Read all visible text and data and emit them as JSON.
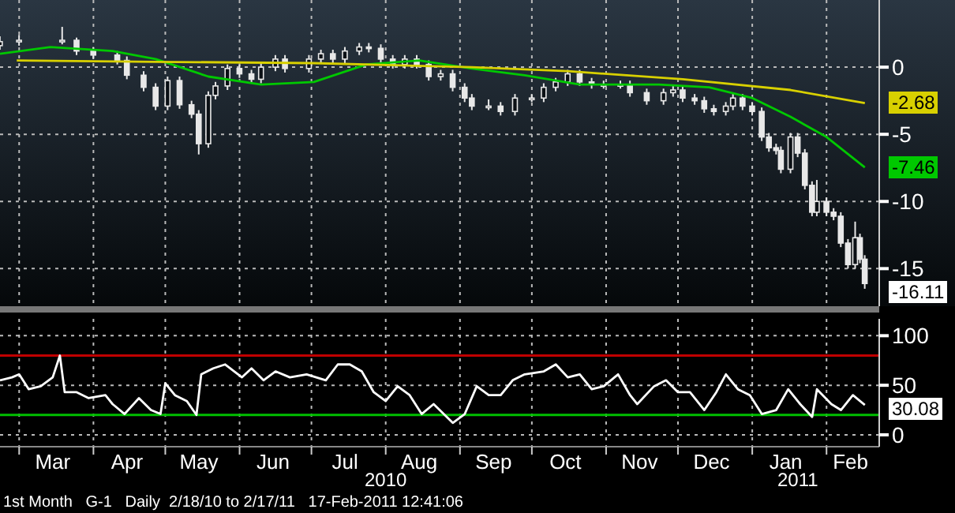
{
  "chart_data": [
    {
      "type": "candlestick",
      "xlim": [
        "2010-02-21",
        "2011-02-23"
      ],
      "ylim": [
        -17.8,
        5
      ],
      "yticks": [
        0,
        -5,
        -10,
        -15
      ],
      "tick_labels": "y",
      "grid": true,
      "xticks": [
        {
          "value": "2010-03-01",
          "label": null
        },
        {
          "value": "2010-04-01",
          "label": null
        },
        {
          "value": "2010-05-01",
          "label": null
        },
        {
          "value": "2010-06-01",
          "label": null
        },
        {
          "value": "2010-07-01",
          "label": null
        },
        {
          "value": "2010-08-01",
          "label": null
        },
        {
          "value": "2010-09-01",
          "label": null
        },
        {
          "value": "2010-10-01",
          "label": null
        },
        {
          "value": "2010-11-01",
          "label": null
        },
        {
          "value": "2010-12-01",
          "label": null
        },
        {
          "value": "2011-01-01",
          "label": null
        },
        {
          "value": "2011-02-01",
          "label": null
        }
      ],
      "series": [
        {
          "type": "candlestick",
          "color": "#e8e8e8",
          "x": [
            "2010-02-21",
            "2010-03-01",
            "2010-03-19",
            "2010-03-25",
            "2010-04-01",
            "2010-04-11",
            "2010-04-15",
            "2010-04-22",
            "2010-04-27",
            "2010-05-02",
            "2010-05-07",
            "2010-05-12",
            "2010-05-15",
            "2010-05-19",
            "2010-05-22",
            "2010-05-27",
            "2010-06-01",
            "2010-06-06",
            "2010-06-10",
            "2010-06-16",
            "2010-06-20",
            "2010-06-30",
            "2010-07-05",
            "2010-07-10",
            "2010-07-15",
            "2010-07-21",
            "2010-07-25",
            "2010-07-30",
            "2010-08-04",
            "2010-08-09",
            "2010-08-14",
            "2010-08-19",
            "2010-08-24",
            "2010-08-29",
            "2010-09-03",
            "2010-09-06",
            "2010-09-13",
            "2010-09-18",
            "2010-09-24",
            "2010-10-01",
            "2010-10-06",
            "2010-10-11",
            "2010-10-16",
            "2010-10-21",
            "2010-10-26",
            "2010-10-31",
            "2010-11-07",
            "2010-11-11",
            "2010-11-18",
            "2010-11-25",
            "2010-11-29",
            "2010-12-03",
            "2010-12-08",
            "2010-12-12",
            "2010-12-16",
            "2010-12-21",
            "2010-12-24",
            "2010-12-28",
            "2011-01-01",
            "2011-01-05",
            "2011-01-08",
            "2011-01-11",
            "2011-01-13",
            "2011-01-17",
            "2011-01-20",
            "2011-01-23",
            "2011-01-26",
            "2011-01-28",
            "2011-02-01",
            "2011-02-04",
            "2011-02-07",
            "2011-02-10",
            "2011-02-13",
            "2011-02-15",
            "2011-02-17"
          ],
          "ohlc": [
            [
              1.6,
              2.3,
              1.3,
              1.9
            ],
            [
              1.9,
              2.4,
              1.6,
              2.0
            ],
            [
              2.0,
              3.0,
              1.7,
              2.0
            ],
            [
              2.0,
              2.2,
              0.9,
              1.2
            ],
            [
              1.2,
              1.5,
              0.6,
              0.9
            ],
            [
              0.9,
              1.2,
              0.2,
              0.5
            ],
            [
              0.5,
              0.8,
              -0.9,
              -0.6
            ],
            [
              -0.6,
              -0.3,
              -1.8,
              -1.5
            ],
            [
              -1.5,
              -1.2,
              -3.2,
              -2.9
            ],
            [
              -2.9,
              -0.7,
              -3.2,
              -1.0
            ],
            [
              -1.0,
              -0.7,
              -3.1,
              -2.8
            ],
            [
              -2.8,
              -2.5,
              -3.8,
              -3.5
            ],
            [
              -3.5,
              -3.2,
              -6.5,
              -5.7
            ],
            [
              -5.7,
              -1.8,
              -6.0,
              -2.1
            ],
            [
              -2.1,
              -1.1,
              -2.4,
              -1.4
            ],
            [
              -1.4,
              0.2,
              -1.7,
              -0.1
            ],
            [
              -0.1,
              0.2,
              -0.8,
              -0.5
            ],
            [
              -0.5,
              -0.2,
              -1.2,
              -0.9
            ],
            [
              -0.9,
              0.3,
              -1.2,
              0.0
            ],
            [
              0.0,
              0.9,
              -0.3,
              0.6
            ],
            [
              0.6,
              0.9,
              -0.4,
              -0.1
            ],
            [
              -0.1,
              0.9,
              -0.4,
              0.6
            ],
            [
              0.6,
              1.3,
              0.3,
              1.0
            ],
            [
              1.0,
              1.3,
              0.3,
              0.6
            ],
            [
              0.6,
              1.5,
              0.3,
              1.2
            ],
            [
              1.2,
              1.8,
              0.9,
              1.5
            ],
            [
              1.5,
              1.8,
              1.1,
              1.4
            ],
            [
              1.4,
              1.7,
              0.3,
              0.6
            ],
            [
              0.6,
              0.9,
              -0.1,
              0.2
            ],
            [
              0.2,
              0.9,
              -0.1,
              0.6
            ],
            [
              0.6,
              0.9,
              -0.1,
              0.2
            ],
            [
              0.2,
              0.5,
              -1.0,
              -0.7
            ],
            [
              -0.7,
              -0.2,
              -1.0,
              -0.5
            ],
            [
              -0.5,
              -0.2,
              -1.8,
              -1.5
            ],
            [
              -1.5,
              -1.2,
              -2.6,
              -2.3
            ],
            [
              -2.3,
              -2.0,
              -3.2,
              -2.9
            ],
            [
              -2.9,
              -2.4,
              -3.2,
              -2.9
            ],
            [
              -2.9,
              -2.6,
              -3.6,
              -3.3
            ],
            [
              -3.3,
              -2.0,
              -3.6,
              -2.3
            ],
            [
              -2.3,
              -2.0,
              -2.6,
              -2.3
            ],
            [
              -2.3,
              -1.2,
              -2.6,
              -1.5
            ],
            [
              -1.5,
              -0.8,
              -1.8,
              -1.1
            ],
            [
              -1.1,
              -0.2,
              -1.4,
              -0.5
            ],
            [
              -0.5,
              -0.2,
              -1.4,
              -1.1
            ],
            [
              -1.1,
              -0.8,
              -1.6,
              -1.3
            ],
            [
              -1.3,
              -1.0,
              -1.6,
              -1.3
            ],
            [
              -1.3,
              -1.0,
              -1.6,
              -1.3
            ],
            [
              -1.3,
              -1.0,
              -2.2,
              -1.9
            ],
            [
              -1.9,
              -1.6,
              -2.8,
              -2.5
            ],
            [
              -2.5,
              -1.6,
              -2.8,
              -1.9
            ],
            [
              -1.9,
              -1.4,
              -2.2,
              -1.7
            ],
            [
              -1.7,
              -1.4,
              -2.6,
              -2.3
            ],
            [
              -2.3,
              -2.0,
              -2.8,
              -2.5
            ],
            [
              -2.5,
              -2.2,
              -3.4,
              -3.1
            ],
            [
              -3.1,
              -2.8,
              -3.6,
              -3.3
            ],
            [
              -3.3,
              -2.6,
              -3.6,
              -2.9
            ],
            [
              -2.9,
              -2.0,
              -3.2,
              -2.3
            ],
            [
              -2.3,
              -2.0,
              -3.2,
              -2.9
            ],
            [
              -2.9,
              -2.6,
              -3.6,
              -3.3
            ],
            [
              -3.3,
              -3.0,
              -5.5,
              -5.2
            ],
            [
              -5.2,
              -4.9,
              -6.3,
              -6.0
            ],
            [
              -6.0,
              -5.7,
              -6.5,
              -6.2
            ],
            [
              -6.2,
              -5.9,
              -7.9,
              -7.6
            ],
            [
              -7.6,
              -4.9,
              -7.9,
              -5.2
            ],
            [
              -5.2,
              -4.9,
              -6.7,
              -6.4
            ],
            [
              -6.4,
              -6.1,
              -9.1,
              -8.8
            ],
            [
              -8.8,
              -8.5,
              -11.1,
              -10.8
            ],
            [
              -10.8,
              -8.4,
              -11.1,
              -10.0
            ],
            [
              -10.0,
              -9.7,
              -11.1,
              -10.8
            ],
            [
              -10.8,
              -10.5,
              -11.4,
              -11.1
            ],
            [
              -11.1,
              -10.8,
              -13.4,
              -13.1
            ],
            [
              -13.1,
              -12.8,
              -15.0,
              -14.7
            ],
            [
              -14.7,
              -11.5,
              -15.0,
              -12.7
            ],
            [
              -12.7,
              -12.4,
              -14.6,
              -14.3
            ],
            [
              -14.3,
              -14.0,
              -16.5,
              -16.11
            ]
          ]
        },
        {
          "type": "line",
          "color": "#00c800",
          "x": [
            "2010-02-21",
            "2010-03-14",
            "2010-04-09",
            "2010-04-27",
            "2010-05-19",
            "2010-06-10",
            "2010-07-02",
            "2010-07-24",
            "2010-08-15",
            "2010-09-06",
            "2010-09-28",
            "2010-10-21",
            "2010-11-23",
            "2010-12-14",
            "2011-01-01",
            "2011-01-17",
            "2011-02-01",
            "2011-02-17"
          ],
          "values": [
            1.0,
            1.5,
            1.2,
            0.6,
            -0.7,
            -1.3,
            -1.1,
            0.2,
            0.5,
            -0.1,
            -0.6,
            -1.3,
            -1.3,
            -1.5,
            -2.3,
            -3.7,
            -5.2,
            -7.46
          ]
        },
        {
          "type": "line",
          "color": "#d8d000",
          "x": [
            "2010-02-28",
            "2010-04-27",
            "2010-07-02",
            "2010-09-06",
            "2010-10-16",
            "2010-12-03",
            "2011-01-17",
            "2011-02-17"
          ],
          "values": [
            0.5,
            0.4,
            0.3,
            0.0,
            -0.3,
            -0.9,
            -1.7,
            -2.68
          ]
        }
      ],
      "annotations": [
        {
          "text": "-2.68",
          "x": "2011-02-17",
          "y": -2.68
        },
        {
          "text": "-7.46",
          "x": "2011-02-17",
          "y": -7.46
        },
        {
          "text": "-16.11",
          "x": "2011-02-17",
          "y": -16.11
        }
      ]
    },
    {
      "type": "line",
      "xlim": [
        "2010-02-21",
        "2011-02-23"
      ],
      "ylim": [
        -12,
        117
      ],
      "yticks": [
        0,
        50,
        100
      ],
      "grid": true,
      "xticks": [
        {
          "value": "2010-03-01",
          "label": null
        },
        {
          "value": "2010-03-15",
          "label": "Mar"
        },
        {
          "value": "2010-04-01",
          "label": null
        },
        {
          "value": "2010-04-15",
          "label": "Apr"
        },
        {
          "value": "2010-05-01",
          "label": null
        },
        {
          "value": "2010-05-15",
          "label": "May"
        },
        {
          "value": "2010-06-01",
          "label": null
        },
        {
          "value": "2010-06-15",
          "label": "Jun"
        },
        {
          "value": "2010-07-01",
          "label": null
        },
        {
          "value": "2010-07-15",
          "label": "Jul"
        },
        {
          "value": "2010-08-01",
          "label": null
        },
        {
          "value": "2010-08-15",
          "label": "Aug"
        },
        {
          "value": "2010-09-01",
          "label": null
        },
        {
          "value": "2010-09-15",
          "label": "Sep"
        },
        {
          "value": "2010-10-01",
          "label": null
        },
        {
          "value": "2010-10-15",
          "label": "Oct"
        },
        {
          "value": "2010-11-01",
          "label": null
        },
        {
          "value": "2010-11-15",
          "label": "Nov"
        },
        {
          "value": "2010-12-01",
          "label": null
        },
        {
          "value": "2010-12-15",
          "label": "Dec"
        },
        {
          "value": "2011-01-01",
          "label": null
        },
        {
          "value": "2011-01-15",
          "label": "Jan"
        },
        {
          "value": "2011-02-01",
          "label": null
        },
        {
          "value": "2011-02-11",
          "label": "Feb"
        }
      ],
      "series": [
        {
          "color": "#ffffff",
          "x": [
            "2010-02-21",
            "2010-02-26",
            "2010-03-01",
            "2010-03-05",
            "2010-03-10",
            "2010-03-15",
            "2010-03-18",
            "2010-03-20",
            "2010-03-25",
            "2010-03-30",
            "2010-04-06",
            "2010-04-09",
            "2010-04-14",
            "2010-04-20",
            "2010-04-25",
            "2010-04-29",
            "2010-05-01",
            "2010-05-05",
            "2010-05-10",
            "2010-05-14",
            "2010-05-16",
            "2010-05-21",
            "2010-05-26",
            "2010-06-02",
            "2010-06-06",
            "2010-06-11",
            "2010-06-16",
            "2010-06-22",
            "2010-06-29",
            "2010-07-07",
            "2010-07-12",
            "2010-07-17",
            "2010-07-22",
            "2010-07-27",
            "2010-08-01",
            "2010-08-06",
            "2010-08-11",
            "2010-08-16",
            "2010-08-21",
            "2010-08-29",
            "2010-09-03",
            "2010-09-08",
            "2010-09-13",
            "2010-09-18",
            "2010-09-23",
            "2010-09-28",
            "2010-10-06",
            "2010-10-11",
            "2010-10-16",
            "2010-10-21",
            "2010-10-26",
            "2010-10-31",
            "2010-11-06",
            "2010-11-11",
            "2010-11-14",
            "2010-11-21",
            "2010-11-26",
            "2010-12-01",
            "2010-12-06",
            "2010-12-12",
            "2010-12-17",
            "2010-12-21",
            "2010-12-26",
            "2010-12-31",
            "2011-01-05",
            "2011-01-11",
            "2011-01-16",
            "2011-01-21",
            "2011-01-26",
            "2011-01-28",
            "2011-02-03",
            "2011-02-07",
            "2011-02-12",
            "2011-02-17"
          ],
          "values": [
            55,
            58,
            61,
            46,
            49,
            58,
            80,
            43,
            43,
            37,
            40,
            31,
            21,
            37,
            25,
            21,
            52,
            40,
            34,
            20,
            61,
            67,
            71,
            58,
            67,
            55,
            64,
            58,
            61,
            55,
            71,
            71,
            64,
            43,
            34,
            49,
            40,
            21,
            31,
            12,
            21,
            49,
            40,
            40,
            55,
            61,
            64,
            71,
            58,
            61,
            46,
            49,
            61,
            40,
            31,
            49,
            55,
            43,
            43,
            25,
            43,
            61,
            46,
            40,
            21,
            25,
            46,
            31,
            18,
            46,
            31,
            25,
            40,
            30.08
          ]
        }
      ],
      "ref_lines": [
        {
          "axis": "y",
          "value": 80,
          "color": "#c00000"
        },
        {
          "axis": "y",
          "value": 20,
          "color": "#00c000"
        }
      ],
      "x2lim": [
        "2010-02-21",
        "2011-02-23"
      ],
      "x2ticks": [
        {
          "value": "2010-08-01",
          "label": "2010"
        },
        {
          "value": "2011-01-20",
          "label": "2011"
        }
      ],
      "annotations": [
        {
          "text": "30.08",
          "x": "2011-02-17",
          "y": 30.08
        },
        "1st Month   G-1   Daily  2/18/10 to 2/17/11   17-Feb-2011 12:41:06"
      ]
    }
  ]
}
